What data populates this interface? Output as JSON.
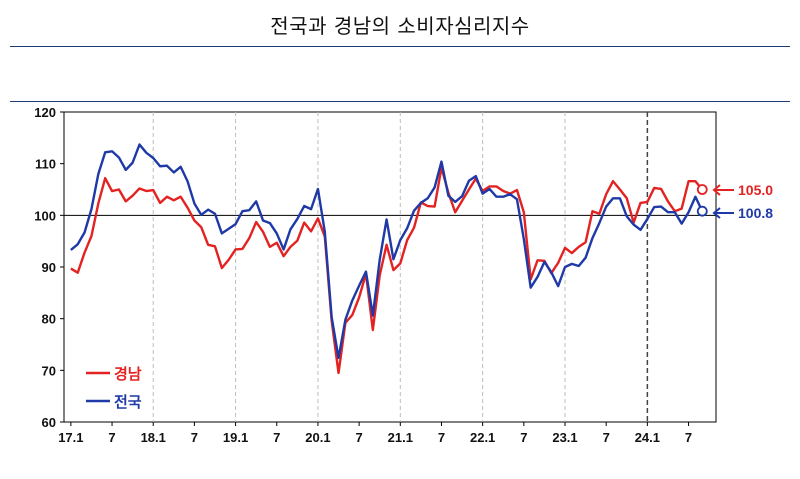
{
  "title": "전국과 경남의 소비자심리지수",
  "colors": {
    "gyeongnam": "#e32222",
    "national": "#1f3aa6"
  },
  "chart_data": {
    "type": "line",
    "x_tick_labels": [
      "17.1",
      "7",
      "18.1",
      "7",
      "19.1",
      "7",
      "20.1",
      "7",
      "21.1",
      "7",
      "22.1",
      "7",
      "23.1",
      "7",
      "24.1",
      "7"
    ],
    "y_ticks": [
      60,
      70,
      80,
      90,
      100,
      110,
      120
    ],
    "ylim": [
      60,
      120
    ],
    "reference_line": 100,
    "highlight_boundary": "24.1",
    "series": [
      {
        "name": "경남",
        "color": "#e32222",
        "final_label": "105.0",
        "values": [
          89.7,
          88.9,
          92.8,
          96.0,
          102.3,
          107.2,
          104.7,
          105.0,
          102.7,
          103.8,
          105.2,
          104.7,
          104.9,
          102.4,
          103.6,
          102.9,
          103.6,
          101.5,
          99.0,
          97.7,
          94.3,
          94.0,
          89.8,
          91.4,
          93.4,
          93.5,
          95.6,
          98.7,
          96.8,
          93.9,
          94.7,
          92.1,
          93.9,
          95.1,
          98.6,
          96.9,
          99.4,
          95.9,
          79.6,
          69.5,
          79.2,
          80.7,
          84.1,
          88.7,
          77.8,
          88.4,
          94.3,
          89.4,
          90.7,
          95.2,
          97.6,
          102.5,
          101.8,
          101.7,
          109.2,
          104.4,
          100.6,
          102.8,
          105.0,
          107.1,
          104.7,
          105.6,
          105.6,
          104.7,
          104.2,
          104.9,
          100.6,
          87.6,
          91.3,
          91.2,
          88.8,
          90.8,
          93.7,
          92.7,
          93.9,
          94.8,
          100.8,
          100.3,
          104.1,
          106.6,
          105.0,
          103.3,
          98.6,
          102.4,
          102.6,
          105.3,
          105.1,
          102.7,
          100.8,
          101.3,
          106.6,
          106.6,
          105.0
        ]
      },
      {
        "name": "전국",
        "color": "#1f3aa6",
        "final_label": "100.8",
        "values": [
          93.3,
          94.4,
          96.7,
          101.2,
          108.0,
          112.2,
          112.4,
          111.2,
          108.8,
          110.2,
          113.7,
          112.1,
          111.1,
          109.5,
          109.6,
          108.3,
          109.4,
          106.6,
          102.3,
          100.1,
          101.1,
          100.3,
          96.5,
          97.4,
          98.3,
          100.8,
          101.0,
          102.7,
          99.0,
          98.5,
          96.5,
          93.4,
          97.3,
          99.3,
          101.8,
          101.2,
          105.1,
          96.8,
          80.3,
          72.4,
          79.8,
          83.5,
          86.4,
          89.1,
          80.6,
          91.4,
          99.2,
          91.5,
          95.2,
          97.5,
          100.9,
          102.4,
          103.3,
          105.4,
          110.4,
          103.8,
          102.6,
          103.7,
          106.7,
          107.6,
          104.2,
          105.1,
          103.6,
          103.6,
          104.1,
          103.1,
          95.4,
          86.0,
          88.1,
          91.0,
          89.0,
          86.3,
          90.0,
          90.6,
          90.2,
          91.8,
          95.6,
          98.5,
          101.7,
          103.3,
          103.3,
          99.8,
          98.2,
          97.2,
          99.3,
          101.6,
          101.7,
          100.6,
          100.6,
          98.4,
          100.6,
          103.6,
          100.8
        ]
      }
    ]
  }
}
